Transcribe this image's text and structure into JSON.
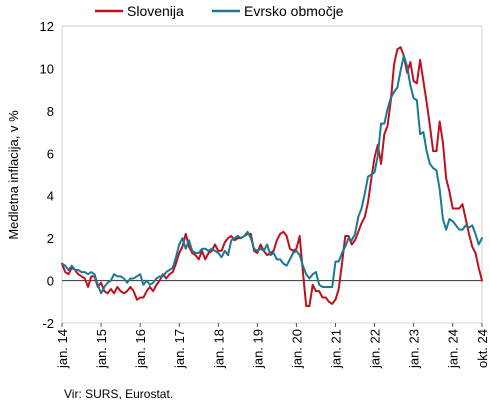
{
  "chart_data": {
    "type": "line",
    "title": "",
    "xlabel": "",
    "ylabel": "Medletna inflacija, v %",
    "ylim": [
      -2,
      12
    ],
    "yticks": [
      -2,
      0,
      2,
      4,
      6,
      8,
      10,
      12
    ],
    "grid": "none",
    "legend_position": "top",
    "x_start": "2014-01",
    "x_end": "2024-10",
    "x_tick_labels": [
      "jan. 14",
      "jan. 15",
      "jan. 16",
      "jan. 17",
      "jan. 18",
      "jan. 19",
      "jan. 20",
      "jan. 21",
      "jan. 22",
      "jan. 23",
      "jan. 24",
      "okt. 24"
    ],
    "x_tick_dates": [
      "2014-01",
      "2015-01",
      "2016-01",
      "2017-01",
      "2018-01",
      "2019-01",
      "2020-01",
      "2021-01",
      "2022-01",
      "2023-01",
      "2024-01",
      "2024-10"
    ],
    "x": [
      "2014-01",
      "2014-02",
      "2014-03",
      "2014-04",
      "2014-05",
      "2014-06",
      "2014-07",
      "2014-08",
      "2014-09",
      "2014-10",
      "2014-11",
      "2014-12",
      "2015-01",
      "2015-02",
      "2015-03",
      "2015-04",
      "2015-05",
      "2015-06",
      "2015-07",
      "2015-08",
      "2015-09",
      "2015-10",
      "2015-11",
      "2015-12",
      "2016-01",
      "2016-02",
      "2016-03",
      "2016-04",
      "2016-05",
      "2016-06",
      "2016-07",
      "2016-08",
      "2016-09",
      "2016-10",
      "2016-11",
      "2016-12",
      "2017-01",
      "2017-02",
      "2017-03",
      "2017-04",
      "2017-05",
      "2017-06",
      "2017-07",
      "2017-08",
      "2017-09",
      "2017-10",
      "2017-11",
      "2017-12",
      "2018-01",
      "2018-02",
      "2018-03",
      "2018-04",
      "2018-05",
      "2018-06",
      "2018-07",
      "2018-08",
      "2018-09",
      "2018-10",
      "2018-11",
      "2018-12",
      "2019-01",
      "2019-02",
      "2019-03",
      "2019-04",
      "2019-05",
      "2019-06",
      "2019-07",
      "2019-08",
      "2019-09",
      "2019-10",
      "2019-11",
      "2019-12",
      "2020-01",
      "2020-02",
      "2020-03",
      "2020-04",
      "2020-05",
      "2020-06",
      "2020-07",
      "2020-08",
      "2020-09",
      "2020-10",
      "2020-11",
      "2020-12",
      "2021-01",
      "2021-02",
      "2021-03",
      "2021-04",
      "2021-05",
      "2021-06",
      "2021-07",
      "2021-08",
      "2021-09",
      "2021-10",
      "2021-11",
      "2021-12",
      "2022-01",
      "2022-02",
      "2022-03",
      "2022-04",
      "2022-05",
      "2022-06",
      "2022-07",
      "2022-08",
      "2022-09",
      "2022-10",
      "2022-11",
      "2022-12",
      "2023-01",
      "2023-02",
      "2023-03",
      "2023-04",
      "2023-05",
      "2023-06",
      "2023-07",
      "2023-08",
      "2023-09",
      "2023-10",
      "2023-11",
      "2023-12",
      "2024-01",
      "2024-02",
      "2024-03",
      "2024-04",
      "2024-05",
      "2024-06",
      "2024-07",
      "2024-08",
      "2024-09",
      "2024-10"
    ],
    "series": [
      {
        "name": "Slovenija",
        "color": "#c0101e",
        "values": [
          0.8,
          0.4,
          0.3,
          0.6,
          0.5,
          0.3,
          0.2,
          0.1,
          -0.3,
          0.2,
          0.2,
          -0.3,
          -0.1,
          -0.5,
          -0.6,
          -0.4,
          -0.6,
          -0.3,
          -0.5,
          -0.6,
          -0.5,
          -0.3,
          -0.5,
          -0.9,
          -0.8,
          -0.8,
          -0.5,
          -0.3,
          -0.5,
          -0.2,
          0.0,
          0.3,
          0.1,
          0.3,
          0.4,
          0.8,
          1.3,
          1.6,
          2.2,
          1.6,
          1.3,
          1.2,
          1.0,
          1.4,
          1.0,
          1.3,
          1.4,
          1.7,
          1.4,
          1.4,
          1.8,
          2.0,
          2.1,
          1.9,
          2.0,
          2.0,
          2.1,
          2.2,
          2.2,
          1.4,
          1.3,
          1.7,
          1.4,
          1.2,
          1.3,
          1.4,
          1.9,
          2.2,
          2.3,
          2.1,
          1.5,
          1.4,
          1.5,
          2.1,
          0.4,
          -1.2,
          -1.2,
          -0.2,
          -0.5,
          -0.5,
          -0.8,
          -0.8,
          -1.0,
          -1.1,
          -0.9,
          -0.4,
          0.8,
          2.1,
          2.1,
          1.7,
          1.9,
          2.3,
          2.7,
          3.0,
          3.7,
          4.8,
          5.8,
          6.4,
          5.5,
          6.9,
          7.3,
          8.5,
          10.2,
          10.9,
          11.0,
          10.6,
          9.8,
          10.3,
          9.4,
          9.3,
          10.4,
          9.4,
          8.4,
          7.3,
          6.1,
          6.1,
          7.5,
          6.5,
          4.8,
          4.2,
          3.4,
          3.4,
          3.4,
          3.6,
          2.9,
          2.2,
          1.6,
          1.3,
          0.6,
          0.0
        ]
      },
      {
        "name": "Evrsko območje",
        "color": "#1a7a94",
        "values": [
          0.8,
          0.7,
          0.5,
          0.7,
          0.5,
          0.5,
          0.4,
          0.4,
          0.3,
          0.4,
          0.3,
          -0.2,
          -0.6,
          -0.3,
          -0.1,
          0.0,
          0.3,
          0.2,
          0.2,
          0.1,
          -0.1,
          0.1,
          0.1,
          0.2,
          0.3,
          -0.2,
          0.0,
          -0.2,
          -0.1,
          0.1,
          0.2,
          0.2,
          0.4,
          0.5,
          0.6,
          1.1,
          1.7,
          2.0,
          1.5,
          1.9,
          1.4,
          1.3,
          1.3,
          1.5,
          1.5,
          1.4,
          1.5,
          1.4,
          1.3,
          1.1,
          1.4,
          1.2,
          1.9,
          2.0,
          2.1,
          2.0,
          2.1,
          2.3,
          2.0,
          1.5,
          1.4,
          1.5,
          1.4,
          1.7,
          1.2,
          1.3,
          1.0,
          1.0,
          0.8,
          0.7,
          1.0,
          1.3,
          1.4,
          1.2,
          0.7,
          0.3,
          0.1,
          0.3,
          0.4,
          -0.2,
          -0.3,
          -0.3,
          -0.3,
          -0.3,
          0.9,
          0.9,
          1.3,
          1.6,
          2.0,
          1.9,
          2.2,
          3.0,
          3.4,
          4.1,
          4.9,
          5.0,
          5.1,
          5.9,
          7.4,
          7.4,
          8.1,
          8.6,
          8.9,
          9.1,
          9.9,
          10.6,
          10.1,
          9.2,
          8.6,
          8.5,
          6.9,
          7.0,
          6.1,
          5.5,
          5.3,
          5.2,
          4.3,
          2.9,
          2.4,
          2.9,
          2.8,
          2.6,
          2.4,
          2.4,
          2.6,
          2.5,
          2.6,
          2.2,
          1.7,
          2.0
        ]
      }
    ]
  },
  "source_note": "Vir: SURS, Eurostat."
}
